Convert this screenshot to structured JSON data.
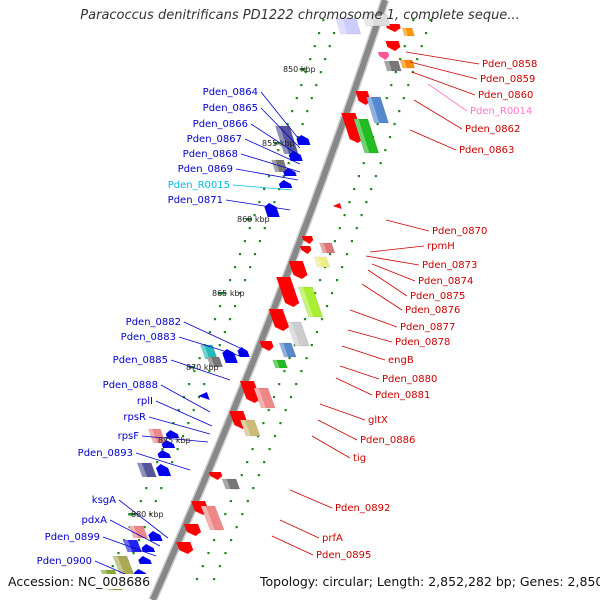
{
  "title": "Paracoccus denitrificans PD1222 chromosome 1, complete seque...",
  "footer": {
    "accession": "Accession: NC_008686",
    "topology": "Topology: circular; Length: 2,852,282 bp; Genes: 2,850"
  },
  "colors": {
    "forward_label": "#0000cc",
    "reverse_label": "#cc0000",
    "trna_forward_label": "#00bbee",
    "trna_reverse_label": "#ff77cc",
    "backbone": "#888888",
    "tick": "#228822"
  },
  "scale_labels": [
    "850 kbp",
    "855 kbp",
    "860 kbp",
    "865 kbp",
    "870 kbp",
    "875 kbp",
    "880 kbp"
  ],
  "left_labels": [
    {
      "text": "Pden_0864",
      "kind": "gene"
    },
    {
      "text": "Pden_0865",
      "kind": "gene"
    },
    {
      "text": "Pden_0866",
      "kind": "gene"
    },
    {
      "text": "Pden_0867",
      "kind": "gene"
    },
    {
      "text": "Pden_0868",
      "kind": "gene"
    },
    {
      "text": "Pden_0869",
      "kind": "gene"
    },
    {
      "text": "Pden_R0015",
      "kind": "trna"
    },
    {
      "text": "Pden_0871",
      "kind": "gene"
    },
    {
      "text": "Pden_0882",
      "kind": "gene"
    },
    {
      "text": "Pden_0883",
      "kind": "gene"
    },
    {
      "text": "Pden_0885",
      "kind": "gene"
    },
    {
      "text": "Pden_0888",
      "kind": "gene"
    },
    {
      "text": "rplI",
      "kind": "gene"
    },
    {
      "text": "rpsR",
      "kind": "gene"
    },
    {
      "text": "rpsF",
      "kind": "gene"
    },
    {
      "text": "Pden_0893",
      "kind": "gene"
    },
    {
      "text": "ksgA",
      "kind": "gene"
    },
    {
      "text": "pdxA",
      "kind": "gene"
    },
    {
      "text": "Pden_0899",
      "kind": "gene"
    },
    {
      "text": "Pden_0900",
      "kind": "gene"
    }
  ],
  "right_labels": [
    {
      "text": "Pden_0858",
      "kind": "gene"
    },
    {
      "text": "Pden_0859",
      "kind": "gene"
    },
    {
      "text": "Pden_0860",
      "kind": "gene"
    },
    {
      "text": "Pden_R0014",
      "kind": "trna"
    },
    {
      "text": "Pden_0862",
      "kind": "gene"
    },
    {
      "text": "Pden_0863",
      "kind": "gene"
    },
    {
      "text": "Pden_0870",
      "kind": "gene"
    },
    {
      "text": "rpmH",
      "kind": "gene"
    },
    {
      "text": "Pden_0873",
      "kind": "gene"
    },
    {
      "text": "Pden_0874",
      "kind": "gene"
    },
    {
      "text": "Pden_0875",
      "kind": "gene"
    },
    {
      "text": "Pden_0876",
      "kind": "gene"
    },
    {
      "text": "Pden_0877",
      "kind": "gene"
    },
    {
      "text": "Pden_0878",
      "kind": "gene"
    },
    {
      "text": "engB",
      "kind": "gene"
    },
    {
      "text": "Pden_0880",
      "kind": "gene"
    },
    {
      "text": "Pden_0881",
      "kind": "gene"
    },
    {
      "text": "gltX",
      "kind": "gene"
    },
    {
      "text": "Pden_0886",
      "kind": "gene"
    },
    {
      "text": "tig",
      "kind": "gene"
    },
    {
      "text": "Pden_0892",
      "kind": "gene"
    },
    {
      "text": "prfA",
      "kind": "gene"
    },
    {
      "text": "Pden_0895",
      "kind": "gene"
    }
  ]
}
